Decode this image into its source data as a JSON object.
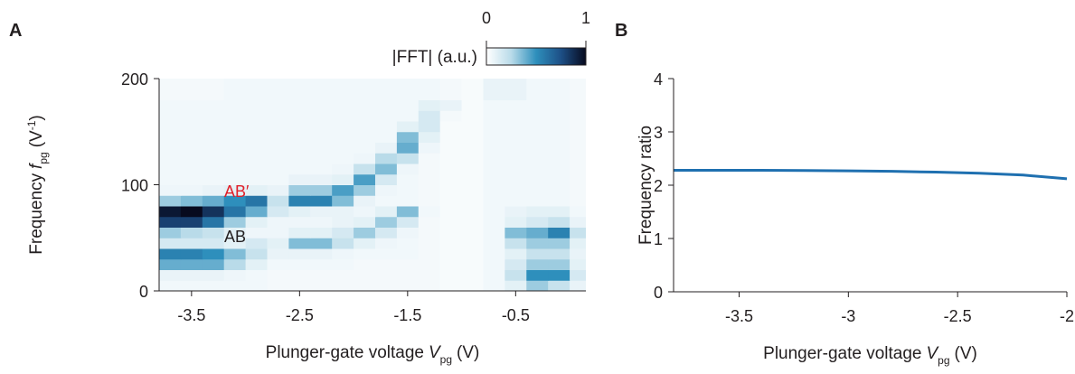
{
  "chart_data": [
    {
      "type": "heatmap",
      "panel_label": "A",
      "xlabel": [
        "Plunger-gate voltage",
        "V",
        "pg",
        "(V)"
      ],
      "ylabel": [
        "Frequency",
        "f",
        "pg",
        "(V",
        "-1",
        ")"
      ],
      "xlim": [
        -3.8,
        0.15
      ],
      "xticks": [
        -3.5,
        -2.5,
        -1.5,
        -0.5
      ],
      "ylim": [
        0,
        200
      ],
      "yticks": [
        0,
        100,
        200
      ],
      "x": [
        -3.7,
        -3.5,
        -3.3,
        -3.1,
        -2.9,
        -2.7,
        -2.5,
        -2.3,
        -2.1,
        -1.9,
        -1.7,
        -1.5,
        -1.3,
        -1.1,
        -0.9,
        -0.7,
        -0.5,
        -0.3,
        -0.1,
        0.1
      ],
      "y": [
        5,
        15,
        25,
        35,
        45,
        55,
        65,
        75,
        85,
        95,
        105,
        115,
        125,
        135,
        145,
        155,
        165,
        175,
        185,
        195
      ],
      "z": [
        [
          0.05,
          0.05,
          0.05,
          0.05,
          0.05,
          0.04,
          0.04,
          0.04,
          0.04,
          0.04,
          0.04,
          0.04,
          0.04,
          0.03,
          0.03,
          0.05,
          0.1,
          0.3,
          0.2,
          0.08
        ],
        [
          0.08,
          0.08,
          0.08,
          0.06,
          0.05,
          0.04,
          0.04,
          0.04,
          0.04,
          0.04,
          0.04,
          0.04,
          0.04,
          0.03,
          0.03,
          0.05,
          0.2,
          0.5,
          0.5,
          0.15
        ],
        [
          0.4,
          0.4,
          0.4,
          0.25,
          0.1,
          0.05,
          0.05,
          0.05,
          0.05,
          0.04,
          0.04,
          0.04,
          0.04,
          0.03,
          0.03,
          0.05,
          0.15,
          0.3,
          0.3,
          0.1
        ],
        [
          0.55,
          0.55,
          0.5,
          0.35,
          0.2,
          0.08,
          0.08,
          0.08,
          0.06,
          0.05,
          0.05,
          0.05,
          0.04,
          0.03,
          0.03,
          0.05,
          0.1,
          0.2,
          0.2,
          0.08
        ],
        [
          0.15,
          0.15,
          0.15,
          0.1,
          0.15,
          0.1,
          0.35,
          0.35,
          0.2,
          0.1,
          0.06,
          0.05,
          0.04,
          0.03,
          0.03,
          0.05,
          0.2,
          0.3,
          0.3,
          0.1
        ],
        [
          0.3,
          0.25,
          0.2,
          0.1,
          0.06,
          0.06,
          0.1,
          0.1,
          0.15,
          0.3,
          0.15,
          0.06,
          0.04,
          0.03,
          0.03,
          0.05,
          0.35,
          0.4,
          0.55,
          0.2
        ],
        [
          0.8,
          0.8,
          0.6,
          0.3,
          0.1,
          0.06,
          0.06,
          0.06,
          0.08,
          0.1,
          0.3,
          0.15,
          0.04,
          0.03,
          0.03,
          0.05,
          0.1,
          0.15,
          0.2,
          0.08
        ],
        [
          0.95,
          1.0,
          0.85,
          0.6,
          0.4,
          0.15,
          0.1,
          0.08,
          0.08,
          0.06,
          0.1,
          0.35,
          0.05,
          0.03,
          0.03,
          0.05,
          0.08,
          0.1,
          0.1,
          0.05
        ],
        [
          0.3,
          0.35,
          0.4,
          0.5,
          0.6,
          0.2,
          0.55,
          0.55,
          0.35,
          0.08,
          0.05,
          0.05,
          0.04,
          0.03,
          0.03,
          0.05,
          0.05,
          0.05,
          0.05,
          0.04
        ],
        [
          0.06,
          0.06,
          0.08,
          0.1,
          0.1,
          0.08,
          0.3,
          0.3,
          0.45,
          0.3,
          0.06,
          0.05,
          0.04,
          0.03,
          0.03,
          0.05,
          0.05,
          0.05,
          0.05,
          0.04
        ],
        [
          0.05,
          0.05,
          0.05,
          0.05,
          0.05,
          0.05,
          0.08,
          0.08,
          0.1,
          0.45,
          0.15,
          0.05,
          0.04,
          0.03,
          0.03,
          0.05,
          0.05,
          0.05,
          0.05,
          0.04
        ],
        [
          0.05,
          0.05,
          0.05,
          0.05,
          0.05,
          0.05,
          0.05,
          0.05,
          0.06,
          0.2,
          0.35,
          0.06,
          0.04,
          0.03,
          0.03,
          0.05,
          0.05,
          0.05,
          0.05,
          0.04
        ],
        [
          0.05,
          0.05,
          0.05,
          0.05,
          0.05,
          0.05,
          0.05,
          0.05,
          0.05,
          0.06,
          0.25,
          0.2,
          0.04,
          0.03,
          0.03,
          0.05,
          0.05,
          0.05,
          0.05,
          0.04
        ],
        [
          0.05,
          0.05,
          0.05,
          0.05,
          0.05,
          0.05,
          0.05,
          0.05,
          0.05,
          0.05,
          0.08,
          0.4,
          0.06,
          0.03,
          0.03,
          0.05,
          0.05,
          0.05,
          0.05,
          0.04
        ],
        [
          0.05,
          0.05,
          0.05,
          0.05,
          0.05,
          0.05,
          0.05,
          0.05,
          0.05,
          0.05,
          0.05,
          0.35,
          0.1,
          0.03,
          0.03,
          0.05,
          0.05,
          0.05,
          0.05,
          0.04
        ],
        [
          0.05,
          0.05,
          0.05,
          0.05,
          0.05,
          0.05,
          0.05,
          0.05,
          0.05,
          0.05,
          0.05,
          0.1,
          0.15,
          0.03,
          0.03,
          0.05,
          0.05,
          0.05,
          0.05,
          0.04
        ],
        [
          0.05,
          0.05,
          0.05,
          0.05,
          0.05,
          0.05,
          0.05,
          0.05,
          0.05,
          0.05,
          0.05,
          0.05,
          0.15,
          0.04,
          0.03,
          0.05,
          0.05,
          0.05,
          0.05,
          0.04
        ],
        [
          0.05,
          0.05,
          0.05,
          0.05,
          0.05,
          0.05,
          0.05,
          0.05,
          0.05,
          0.05,
          0.05,
          0.05,
          0.1,
          0.08,
          0.03,
          0.05,
          0.05,
          0.05,
          0.05,
          0.04
        ],
        [
          0.04,
          0.04,
          0.04,
          0.05,
          0.05,
          0.05,
          0.05,
          0.05,
          0.05,
          0.05,
          0.05,
          0.05,
          0.05,
          0.04,
          0.03,
          0.08,
          0.08,
          0.05,
          0.05,
          0.04
        ],
        [
          0.04,
          0.04,
          0.04,
          0.05,
          0.05,
          0.05,
          0.05,
          0.05,
          0.05,
          0.05,
          0.05,
          0.05,
          0.05,
          0.04,
          0.03,
          0.08,
          0.08,
          0.05,
          0.05,
          0.04
        ]
      ],
      "colormap": [
        "#ffffff",
        "#b9dbe9",
        "#2e8fbc",
        "#1d4f86",
        "#070a1e"
      ],
      "zlim": [
        0,
        1
      ],
      "zticks": [
        0,
        1
      ],
      "colorbar_label": "|FFT| (a.u.)",
      "annotations": [
        {
          "text": "AB′",
          "color": "#e0202a"
        },
        {
          "text": "AB",
          "color": "#231f20"
        }
      ]
    },
    {
      "type": "line",
      "panel_label": "B",
      "xlabel": [
        "Plunger-gate voltage",
        "V",
        "pg",
        "(V)"
      ],
      "ylabel": [
        "Frequency ratio"
      ],
      "xlim": [
        -3.8,
        -2
      ],
      "xticks": [
        -3.5,
        -3,
        -2.5,
        -2
      ],
      "ylim": [
        0,
        4
      ],
      "yticks": [
        0,
        1,
        2,
        3,
        4
      ],
      "x": [
        -3.8,
        -3.6,
        -3.4,
        -3.2,
        -3.0,
        -2.8,
        -2.6,
        -2.4,
        -2.2,
        -2.0
      ],
      "values": [
        2.28,
        2.28,
        2.28,
        2.275,
        2.27,
        2.26,
        2.245,
        2.225,
        2.19,
        2.12
      ],
      "color": "#1f70b0"
    }
  ]
}
